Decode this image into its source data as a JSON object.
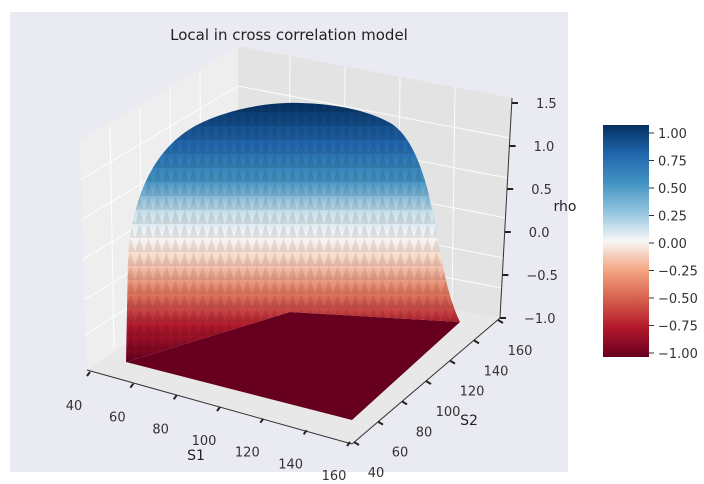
{
  "chart_data": {
    "type": "surface3d",
    "title": "Local in cross correlation model",
    "xlabel": "S1",
    "ylabel": "S2",
    "zlabel": "rho",
    "xlim": [
      40,
      160
    ],
    "ylim": [
      40,
      160
    ],
    "zlim": [
      -1.0,
      1.5
    ],
    "x_ticks": [
      "40",
      "60",
      "80",
      "100",
      "120",
      "140",
      "160"
    ],
    "y_ticks": [
      "40",
      "60",
      "80",
      "100",
      "120",
      "140",
      "160"
    ],
    "z_ticks": [
      "−1.0",
      "−0.5",
      "0.0",
      "0.5",
      "1.0",
      "1.5"
    ],
    "colorbar": {
      "colormap": "RdBu",
      "range": [
        -1.0,
        1.0
      ],
      "ticks": [
        "−1.00",
        "−0.75",
        "−0.50",
        "−0.25",
        "0.00",
        "0.25",
        "0.50",
        "0.75",
        "1.00"
      ]
    },
    "series": [
      {
        "surface": "dome",
        "peak_rho": 1.0,
        "floor_rho": -1.0,
        "cross_section_S1": [
          40,
          60,
          80,
          100,
          120,
          140,
          160
        ],
        "rho_at_S2_100": [
          -1.0,
          -0.1,
          0.6,
          1.0,
          0.6,
          -0.1,
          -1.0
        ]
      }
    ],
    "grid": true
  }
}
